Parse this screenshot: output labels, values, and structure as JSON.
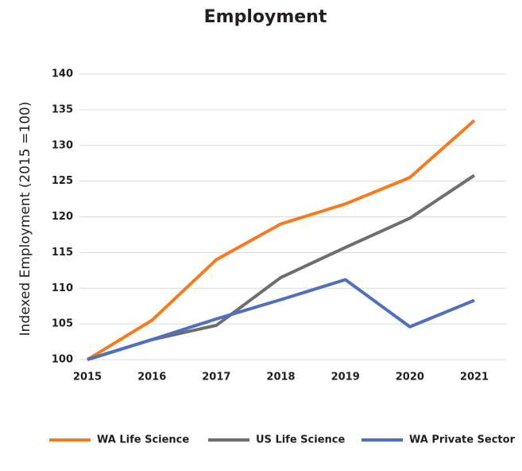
{
  "chart_data": {
    "type": "line",
    "title": "Employment",
    "y_label": "Indexed Employment (2015 =100)",
    "categories": [
      "2015",
      "2016",
      "2017",
      "2018",
      "2019",
      "2020",
      "2021"
    ],
    "series": [
      {
        "name": "WA Life Science",
        "color": "#f47b20",
        "values": [
          100,
          105.5,
          114,
          119,
          121.8,
          125.5,
          133.5
        ]
      },
      {
        "name": "US Life Science",
        "color": "#6d6e70",
        "values": [
          100,
          102.8,
          104.8,
          111.5,
          115.7,
          119.8,
          125.8
        ]
      },
      {
        "name": "WA Private Sector",
        "color": "#4f6fbf",
        "values": [
          100,
          102.8,
          105.7,
          108.4,
          111.2,
          104.6,
          108.3
        ]
      }
    ],
    "ylim": [
      100,
      140
    ],
    "yticks": [
      100,
      105,
      110,
      115,
      120,
      125,
      130,
      135,
      140
    ],
    "grid": true,
    "legend": "bottom"
  }
}
